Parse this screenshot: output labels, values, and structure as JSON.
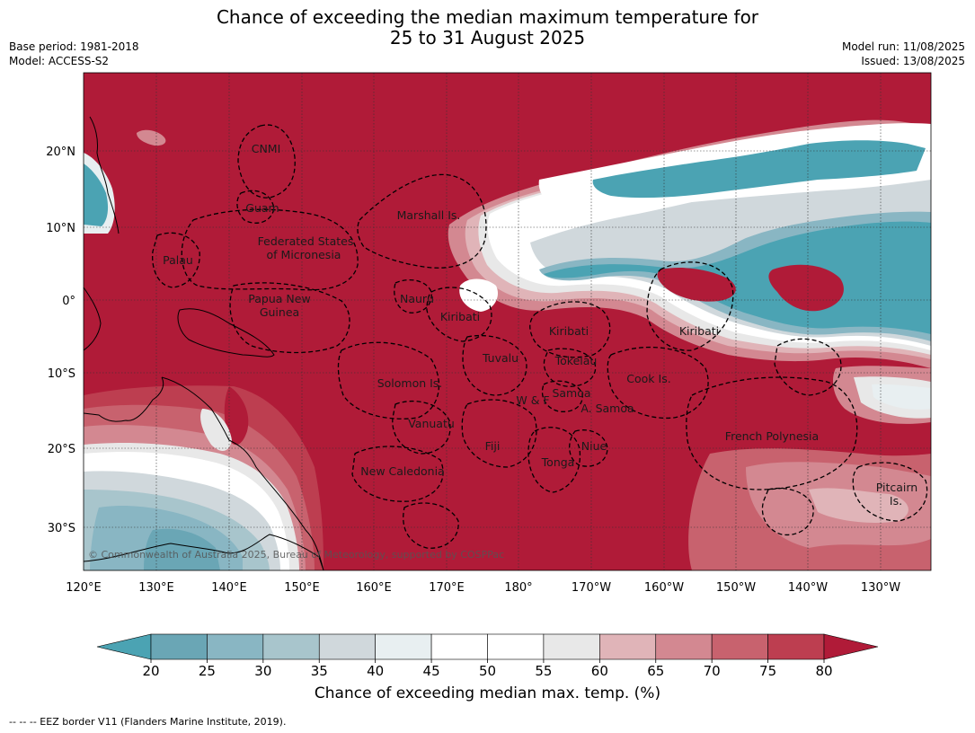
{
  "header": {
    "title_line1": "Chance of exceeding the median maximum temperature for",
    "title_line2": "25 to 31 August 2025",
    "base_period": "Base period: 1981-2018",
    "model": "Model: ACCESS-S2",
    "model_run": "Model run: 11/08/2025",
    "issued": "Issued: 13/08/2025"
  },
  "map": {
    "lon_labels": [
      "120°E",
      "130°E",
      "140°E",
      "150°E",
      "160°E",
      "170°E",
      "180°",
      "170°W",
      "160°W",
      "150°W",
      "140°W",
      "130°W"
    ],
    "lat_labels": [
      "20°N",
      "10°N",
      "0°",
      "10°S",
      "20°S",
      "30°S"
    ],
    "copyright": "© Commonwealth of Australia 2025, Bureau of Meteorology, supported by COSPPac",
    "regions": [
      {
        "id": "cnmi",
        "name": "CNMI"
      },
      {
        "id": "guam",
        "name": "Guam"
      },
      {
        "id": "marshall",
        "name": "Marshall Is."
      },
      {
        "id": "fsm1",
        "name": "Federated States"
      },
      {
        "id": "fsm2",
        "name": "of Micronesia"
      },
      {
        "id": "palau",
        "name": "Palau"
      },
      {
        "id": "nauru",
        "name": "Nauru"
      },
      {
        "id": "png1",
        "name": "Papua New"
      },
      {
        "id": "png2",
        "name": "Guinea"
      },
      {
        "id": "kiribati_w",
        "name": "Kiribati"
      },
      {
        "id": "kiribati_c",
        "name": "Kiribati"
      },
      {
        "id": "kiribati_e",
        "name": "Kiribati"
      },
      {
        "id": "tuvalu",
        "name": "Tuvalu"
      },
      {
        "id": "tokelau",
        "name": "Tokelau"
      },
      {
        "id": "solomon",
        "name": "Solomon Is."
      },
      {
        "id": "cook",
        "name": "Cook Is."
      },
      {
        "id": "samoa",
        "name": "Samoa"
      },
      {
        "id": "wf",
        "name": "W & F"
      },
      {
        "id": "asamoa",
        "name": "A. Samoa"
      },
      {
        "id": "vanuatu",
        "name": "Vanuatu"
      },
      {
        "id": "fiji",
        "name": "Fiji"
      },
      {
        "id": "niue",
        "name": "Niue"
      },
      {
        "id": "tonga",
        "name": "Tonga"
      },
      {
        "id": "frpoly",
        "name": "French Polynesia"
      },
      {
        "id": "newcal",
        "name": "New Caledonia"
      },
      {
        "id": "pitcairn1",
        "name": "Pitcairn"
      },
      {
        "id": "pitcairn2",
        "name": "Is."
      }
    ]
  },
  "colorbar": {
    "ticks": [
      "20",
      "25",
      "30",
      "35",
      "40",
      "45",
      "50",
      "55",
      "60",
      "65",
      "70",
      "75",
      "80"
    ],
    "colors": {
      "below_20": "#4ba3b3",
      "c20_25": "#6aa6b5",
      "c25_30": "#89b6c3",
      "c30_35": "#a8c5cc",
      "c35_40": "#d0d8dc",
      "c40_45": "#e8eff1",
      "c45_50": "#ffffff",
      "c50_55": "#ffffff",
      "c55_60": "#e8e8e8",
      "c60_65": "#e0b4b8",
      "c65_70": "#d38891",
      "c70_75": "#c8626e",
      "c75_80": "#bd3e50",
      "above_80": "#b01b38"
    },
    "label": "Chance of exceeding median max. temp. (%)"
  },
  "footnote": "--  --  -- EEZ border V11 (Flanders Marine Institute, 2019)."
}
